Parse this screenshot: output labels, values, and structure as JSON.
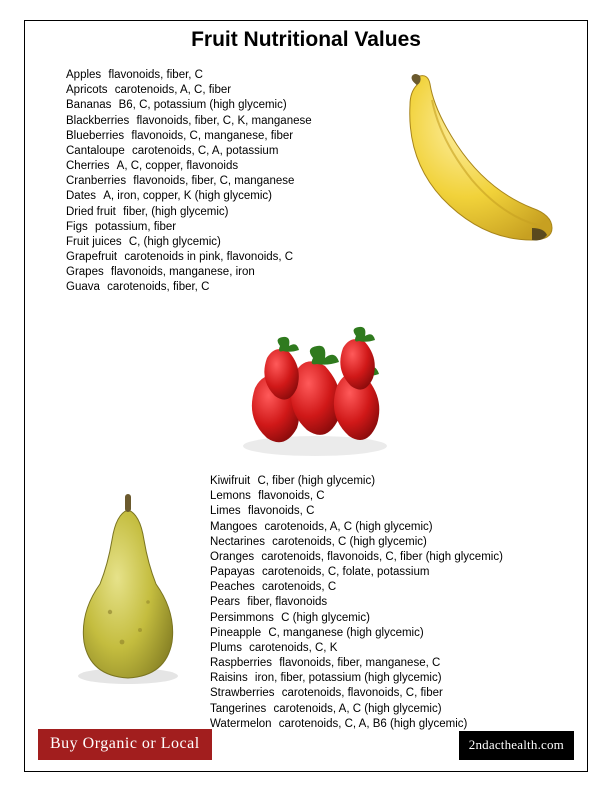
{
  "title": "Fruit Nutritional Values",
  "top_list": [
    {
      "name": "Apples",
      "info": "flavonoids, fiber, C"
    },
    {
      "name": "Apricots",
      "info": "carotenoids, A, C, fiber"
    },
    {
      "name": "Bananas",
      "info": "B6, C, potassium (high glycemic)"
    },
    {
      "name": "Blackberries",
      "info": "flavonoids, fiber, C, K, manganese"
    },
    {
      "name": "Blueberries",
      "info": "flavonoids, C, manganese, fiber"
    },
    {
      "name": "Cantaloupe",
      "info": "carotenoids, C, A, potassium"
    },
    {
      "name": "Cherries",
      "info": "A, C, copper, flavonoids"
    },
    {
      "name": "Cranberries",
      "info": "flavonoids, fiber, C, manganese"
    },
    {
      "name": "Dates",
      "info": "A, iron, copper, K (high glycemic)"
    },
    {
      "name": "Dried fruit",
      "info": "fiber, (high glycemic)"
    },
    {
      "name": "Figs",
      "info": "potassium, fiber"
    },
    {
      "name": "Fruit juices",
      "info": "C, (high glycemic)"
    },
    {
      "name": "Grapefruit",
      "info": "carotenoids in pink, flavonoids, C"
    },
    {
      "name": "Grapes",
      "info": "flavonoids, manganese, iron"
    },
    {
      "name": "Guava",
      "info": "carotenoids, fiber, C"
    }
  ],
  "bottom_list": [
    {
      "name": "Kiwifruit",
      "info": "C, fiber (high glycemic)"
    },
    {
      "name": "Lemons",
      "info": "flavonoids, C"
    },
    {
      "name": "Limes",
      "info": "flavonoids, C"
    },
    {
      "name": "Mangoes",
      "info": "carotenoids, A, C (high glycemic)"
    },
    {
      "name": "Nectarines",
      "info": "carotenoids, C (high glycemic)"
    },
    {
      "name": "Oranges",
      "info": "carotenoids, flavonoids, C, fiber (high glycemic)"
    },
    {
      "name": "Papayas",
      "info": "carotenoids, C, folate, potassium"
    },
    {
      "name": "Peaches",
      "info": "carotenoids, C"
    },
    {
      "name": "Pears",
      "info": "fiber, flavonoids"
    },
    {
      "name": "Persimmons",
      "info": "C (high glycemic)"
    },
    {
      "name": "Pineapple",
      "info": "C, manganese (high glycemic)"
    },
    {
      "name": "Plums",
      "info": "carotenoids, C, K"
    },
    {
      "name": "Raspberries",
      "info": "flavonoids, fiber, manganese, C"
    },
    {
      "name": "Raisins",
      "info": "iron, fiber, potassium (high glycemic)"
    },
    {
      "name": "Strawberries",
      "info": "carotenoids, flavonoids, C, fiber"
    },
    {
      "name": "Tangerines",
      "info": "carotenoids, A, C (high glycemic)"
    },
    {
      "name": "Watermelon",
      "info": "carotenoids, C, A, B6 (high glycemic)"
    }
  ],
  "bottom_left_label": "Buy Organic or Local",
  "bottom_right_label": "2ndacthealth.com",
  "colors": {
    "organic_bg": "#a21e1e",
    "site_bg": "#000000",
    "border": "#000000",
    "text": "#000000"
  },
  "images": {
    "banana": "banana-icon",
    "strawberries": "strawberries-icon",
    "pear": "pear-icon"
  }
}
